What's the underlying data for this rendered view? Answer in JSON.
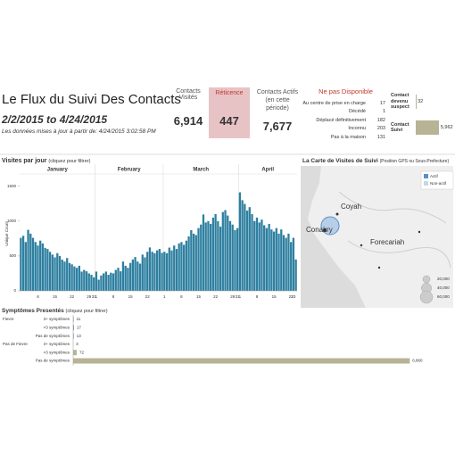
{
  "header": {
    "title": "Le Flux du Suivi Des Contacts",
    "date_range": "2/2/2015 to 4/24/2015",
    "update_note": "Les données mises à jour à partir de: 4/24/2015 3:02:58 PM"
  },
  "kpis": {
    "visited": {
      "label": "Contacts Visités",
      "value": "6,914"
    },
    "reluctance": {
      "label": "Réticence",
      "value": "447"
    },
    "active": {
      "label": "Contacts Actifs (en cette période)",
      "value": "7,677"
    }
  },
  "unavailable": {
    "title": "Ne pas Disponible",
    "rows": [
      {
        "label": "Au centre de prise en charge",
        "value": "17"
      },
      {
        "label": "Décédé",
        "value": "1"
      },
      {
        "label": "Déplacé définitivement",
        "value": "182"
      },
      {
        "label": "Inconnu",
        "value": "203"
      },
      {
        "label": "Pas à la maison",
        "value": "131"
      }
    ]
  },
  "followup": {
    "color": "#b8b394",
    "xlim": [
      0,
      6000
    ],
    "rows": [
      {
        "label": "Contact devenu suspect",
        "value": 32,
        "value_label": "32"
      },
      {
        "label": "Contact Suivi",
        "value": 5962,
        "value_label": "5,962"
      }
    ]
  },
  "map": {
    "title": "La Carte de Visites de Suivi",
    "subtitle": "(Position GPS ou Sous-Prefecture)",
    "legend": [
      {
        "name": "Actif",
        "color": "#5b8fc9"
      },
      {
        "name": "Non-actif",
        "color": "#c6d7ea"
      }
    ],
    "places": [
      "Coyah",
      "Conakry",
      "Forecariah"
    ],
    "size_legend": [
      {
        "value": 20000,
        "label": "20,000"
      },
      {
        "value": 40000,
        "label": "40,000"
      },
      {
        "value": 60000,
        "label": "60,000"
      }
    ]
  },
  "chart_data": [
    {
      "type": "bar",
      "title": "Visites par jour",
      "subtitle": "(cliquez pour filtrer)",
      "y_label": "Unique Count",
      "months": [
        "January",
        "February",
        "March",
        "April"
      ],
      "categories": [
        null,
        null,
        null,
        null,
        null,
        null,
        null,
        8,
        null,
        null,
        null,
        null,
        null,
        null,
        15,
        null,
        null,
        null,
        null,
        null,
        null,
        22,
        null,
        null,
        null,
        null,
        null,
        null,
        29,
        null,
        31,
        1,
        null,
        null,
        null,
        null,
        null,
        null,
        8,
        null,
        null,
        null,
        null,
        null,
        null,
        15,
        null,
        null,
        null,
        null,
        null,
        null,
        22,
        null,
        null,
        null,
        null,
        null,
        null,
        1,
        null,
        null,
        null,
        null,
        null,
        null,
        8,
        null,
        null,
        null,
        null,
        null,
        null,
        15,
        null,
        null,
        null,
        null,
        null,
        null,
        22,
        null,
        null,
        null,
        null,
        null,
        null,
        29,
        null,
        31,
        1,
        null,
        null,
        null,
        null,
        null,
        null,
        8,
        null,
        null,
        null,
        null,
        null,
        null,
        15,
        null,
        null,
        null,
        null,
        null,
        null,
        22,
        23,
        null
      ],
      "values": [
        760,
        789,
        700,
        875,
        820,
        760,
        700,
        650,
        720,
        680,
        616,
        600,
        560,
        520,
        480,
        540,
        500,
        447,
        420,
        470,
        400,
        380,
        350,
        330,
        360,
        276,
        300,
        280,
        250,
        230,
        194,
        276,
        160,
        220,
        250,
        276,
        230,
        260,
        250,
        300,
        330,
        280,
        420,
        360,
        330,
        400,
        450,
        485,
        420,
        390,
        520,
        480,
        560,
        622,
        560,
        540,
        580,
        600,
        545,
        560,
        540,
        620,
        580,
        650,
        600,
        680,
        700,
        660,
        720,
        780,
        870,
        820,
        800,
        900,
        950,
        1095,
        980,
        1000,
        960,
        1050,
        1100,
        1000,
        920,
        1130,
        1157,
        1080,
        1000,
        950,
        870,
        900,
        1412,
        1300,
        1246,
        1150,
        1200,
        1100,
        1000,
        1050,
        980,
        1020,
        940,
        900,
        960,
        880,
        850,
        900,
        820,
        880,
        800,
        760,
        820,
        700,
        760,
        450
      ],
      "color": "#2e7fa0",
      "ylim": [
        0,
        1650
      ],
      "yticks": [
        0,
        500,
        1000,
        1500
      ],
      "grid": false
    },
    {
      "type": "hbar",
      "title": "Symptômes Presentés",
      "subtitle": "(cliquez pour filtrer)",
      "xlim": [
        0,
        7000
      ],
      "groups": [
        {
          "name": "Fievre",
          "color": "#9b7bb0",
          "categories": [
            "3+ symptômes",
            "<3 symptômes",
            "Pas de symptômes"
          ],
          "values": [
            11,
            17,
            13
          ]
        },
        {
          "name": "Pas de Fievre",
          "color": "#b8b394",
          "categories": [
            "3+ symptômes",
            "<3 symptômes",
            "Pas de symptômes"
          ],
          "values": [
            3,
            72,
            6860
          ],
          "value_labels": [
            "3",
            "72",
            "6,860"
          ]
        }
      ]
    }
  ]
}
